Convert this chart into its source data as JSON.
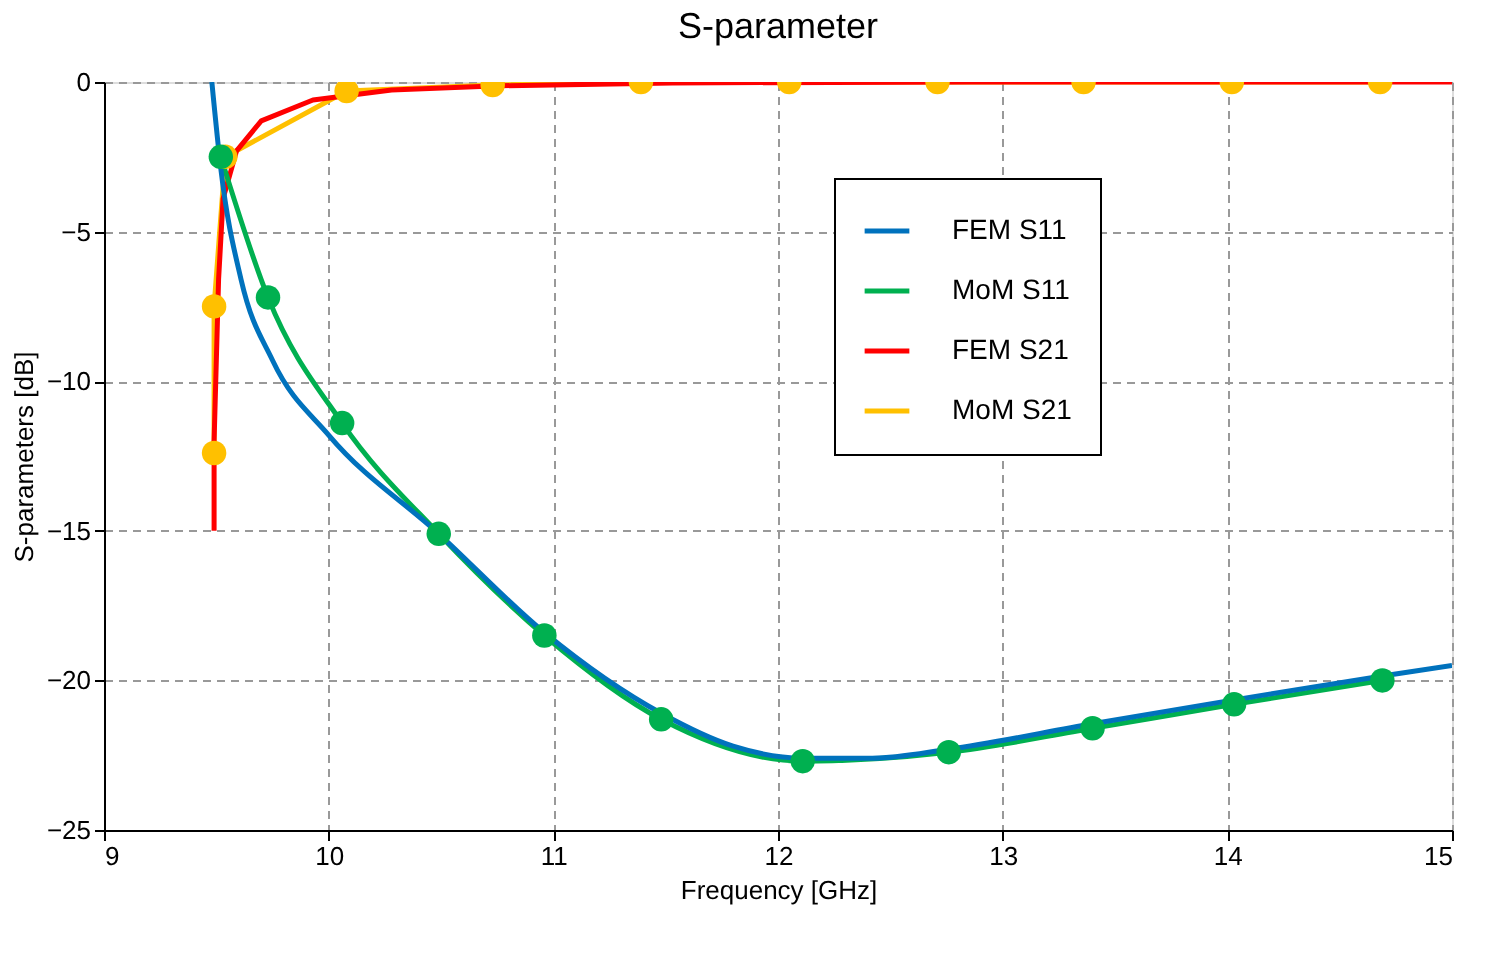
{
  "chart_data": {
    "type": "line",
    "title": "S-parameter",
    "xlabel": "Frequency [GHz]",
    "ylabel": "S-parameters [dB]",
    "xlim": [
      9,
      15
    ],
    "xticks": [
      9,
      10,
      11,
      12,
      13,
      14,
      15
    ],
    "ylim": [
      -25,
      0
    ],
    "yticks": [
      -25,
      -20,
      -15,
      -10,
      -5,
      0
    ],
    "grid": true,
    "legend": "top right",
    "line_style": "solid",
    "series": [
      {
        "name": "FEM S11",
        "color": "#0072bd",
        "marker": "none",
        "x": [
          9.48,
          9.52,
          9.61,
          9.75,
          10.0,
          10.49,
          10.96,
          11.48,
          11.8,
          12.11,
          12.42,
          12.76,
          13.4,
          14.03,
          14.69,
          15.0
        ],
        "values": [
          0,
          -2.9,
          -6.6,
          -9.3,
          -11.8,
          -15.1,
          -18.4,
          -21.1,
          -22.2,
          -22.6,
          -22.6,
          -22.3,
          -21.45,
          -20.65,
          -19.85,
          -19.5
        ]
      },
      {
        "name": "MoM S11",
        "color": "#00b050",
        "marker": "circle",
        "x": [
          9.52,
          9.73,
          10.06,
          10.49,
          10.96,
          11.48,
          12.11,
          12.76,
          13.4,
          14.03,
          14.69
        ],
        "values": [
          -2.5,
          -7.2,
          -11.4,
          -15.1,
          -18.5,
          -21.3,
          -22.7,
          -22.4,
          -21.6,
          -20.8,
          -20.0
        ]
      },
      {
        "name": "FEM S21",
        "color": "#ff0000",
        "marker": "none",
        "x": [
          9.49,
          9.49,
          9.5,
          9.51,
          9.53,
          9.59,
          9.7,
          9.93,
          10.28,
          10.73,
          11.53,
          12.86,
          15.0
        ],
        "values": [
          -15.0,
          -12.0,
          -9.3,
          -6.6,
          -3.9,
          -2.3,
          -1.3,
          -0.6,
          -0.27,
          -0.13,
          -0.03,
          0,
          0
        ]
      },
      {
        "name": "MoM S21",
        "color": "#ffc000",
        "marker": "circle",
        "x": [
          9.49,
          9.49,
          9.54,
          10.08,
          10.73,
          11.39,
          12.05,
          12.71,
          13.36,
          14.02,
          14.68
        ],
        "values": [
          -12.4,
          -7.5,
          -2.5,
          -0.3,
          -0.1,
          0,
          0,
          0,
          0,
          0,
          0
        ]
      }
    ]
  }
}
